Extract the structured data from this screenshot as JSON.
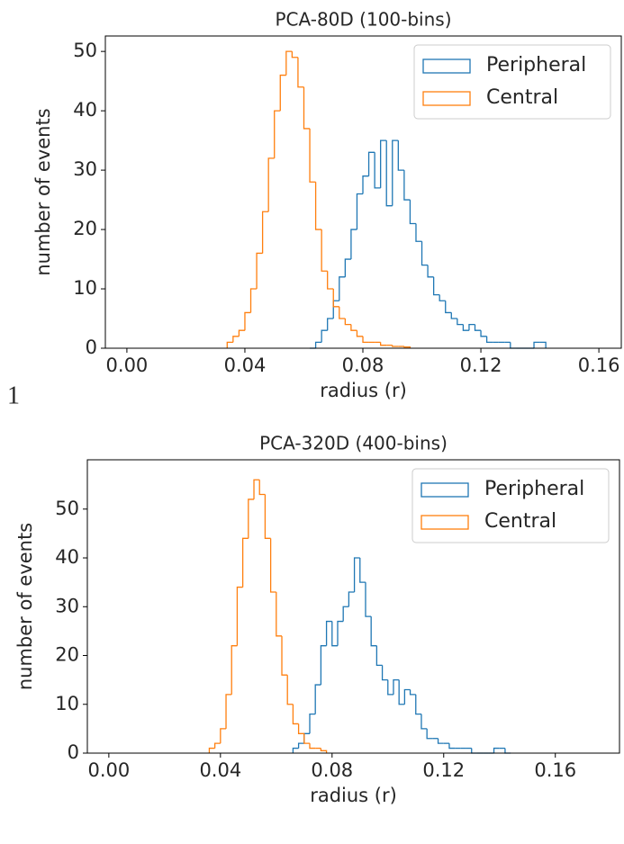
{
  "caption": "1",
  "chart_data": [
    {
      "type": "histogram",
      "title": "PCA-80D (100-bins)",
      "xlabel": "radius (r)",
      "ylabel": "number of events",
      "xlim": [
        -0.0073,
        0.1676
      ],
      "ylim": [
        0,
        52.6
      ],
      "xticks": [
        {
          "value": 0,
          "label": "0.00"
        },
        0.04,
        0.08,
        0.12,
        0.16
      ],
      "yticks": [
        0,
        10,
        20,
        30,
        40,
        50
      ],
      "legend": "upper right",
      "series": [
        {
          "name": "Peripheral",
          "color": "#1f77b4",
          "bins": [
            0.062,
            0.064,
            0.066,
            0.068,
            0.07,
            0.072,
            0.074,
            0.076,
            0.078,
            0.08,
            0.082,
            0.084,
            0.086,
            0.088,
            0.09,
            0.092,
            0.094,
            0.096,
            0.098,
            0.1,
            0.102,
            0.104,
            0.106,
            0.108,
            0.11,
            0.112,
            0.114,
            0.116,
            0.118,
            0.12,
            0.122,
            0.124,
            0.126,
            0.128,
            0.13,
            0.132,
            0.134,
            0.136,
            0.138,
            0.14,
            0.142
          ],
          "values": [
            0,
            1,
            3,
            5,
            8,
            12,
            15,
            20,
            26,
            29,
            33,
            27,
            35,
            24,
            35,
            30,
            25,
            21,
            18,
            14,
            12,
            9,
            8,
            6,
            5,
            4,
            3,
            4,
            3,
            2,
            1,
            1,
            1,
            1,
            0,
            0,
            0,
            0,
            1,
            1
          ]
        },
        {
          "name": "Central",
          "color": "#ff7f0e",
          "bins": [
            0.034,
            0.036,
            0.038,
            0.04,
            0.042,
            0.044,
            0.046,
            0.048,
            0.05,
            0.052,
            0.054,
            0.056,
            0.058,
            0.06,
            0.062,
            0.064,
            0.066,
            0.068,
            0.07,
            0.072,
            0.074,
            0.076,
            0.078,
            0.08,
            0.082,
            0.084,
            0.086,
            0.088,
            0.09,
            0.092,
            0.094,
            0.096
          ],
          "values": [
            1,
            2,
            3,
            6,
            10,
            16,
            23,
            32,
            40,
            46,
            50,
            49,
            44,
            37,
            28,
            20,
            13,
            10,
            7,
            5,
            4,
            3,
            2,
            1,
            1,
            1,
            0.5,
            0.5,
            0.3,
            0.3,
            0.2
          ]
        }
      ]
    },
    {
      "type": "histogram",
      "title": "PCA-320D (400-bins)",
      "xlabel": "radius (r)",
      "ylabel": "number of events",
      "xlim": [
        -0.0077,
        0.183
      ],
      "ylim": [
        0,
        60.1
      ],
      "xticks": [
        {
          "value": 0,
          "label": "0.00"
        },
        0.04,
        0.08,
        0.12,
        0.16
      ],
      "yticks": [
        0,
        10,
        20,
        30,
        40,
        50
      ],
      "legend": "upper right",
      "series": [
        {
          "name": "Peripheral",
          "color": "#1f77b4",
          "bins": [
            0.066,
            0.068,
            0.07,
            0.072,
            0.074,
            0.076,
            0.078,
            0.08,
            0.082,
            0.084,
            0.086,
            0.088,
            0.09,
            0.092,
            0.094,
            0.096,
            0.098,
            0.1,
            0.102,
            0.104,
            0.106,
            0.108,
            0.11,
            0.112,
            0.114,
            0.116,
            0.118,
            0.12,
            0.122,
            0.124,
            0.126,
            0.128,
            0.13,
            0.132,
            0.134,
            0.136,
            0.138,
            0.14,
            0.142,
            0.144
          ],
          "values": [
            1,
            2,
            4,
            8,
            14,
            22,
            27,
            22,
            27,
            30,
            33,
            40,
            35,
            28,
            22,
            18,
            15,
            12,
            15,
            10,
            13,
            12,
            8,
            5,
            3,
            3,
            2,
            2,
            1,
            1,
            1,
            1,
            0,
            0,
            0,
            0,
            1,
            1,
            0
          ]
        },
        {
          "name": "Central",
          "color": "#ff7f0e",
          "bins": [
            0.036,
            0.038,
            0.04,
            0.042,
            0.044,
            0.046,
            0.048,
            0.05,
            0.052,
            0.054,
            0.056,
            0.058,
            0.06,
            0.062,
            0.064,
            0.066,
            0.068,
            0.07,
            0.072,
            0.074,
            0.076,
            0.078
          ],
          "values": [
            1,
            2,
            5,
            12,
            22,
            34,
            44,
            52,
            56,
            53,
            44,
            33,
            24,
            16,
            10,
            6,
            4,
            2,
            1,
            1,
            0.5
          ]
        }
      ]
    }
  ]
}
